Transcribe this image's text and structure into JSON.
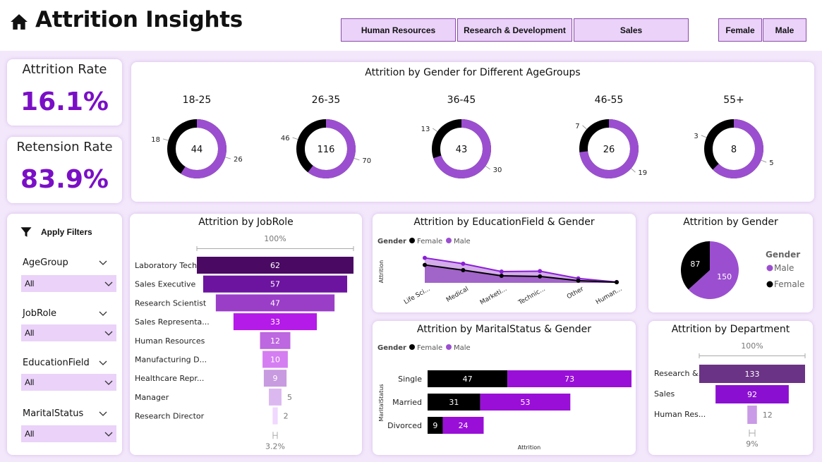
{
  "header": {
    "title": "Attrition Insights",
    "departments": [
      "Human Resources",
      "Research & Development",
      "Sales"
    ],
    "genders": [
      "Female",
      "Male"
    ]
  },
  "kpis": {
    "attrition_label": "Attrition Rate",
    "attrition_value": "16.1%",
    "retention_label": "Retension Rate",
    "retention_value": "83.9%"
  },
  "filters": {
    "title": "Apply Filters",
    "items": [
      {
        "label": "AgeGroup",
        "value": "All"
      },
      {
        "label": "JobRole",
        "value": "All"
      },
      {
        "label": "EducationField",
        "value": "All"
      },
      {
        "label": "MaritalStatus",
        "value": "All"
      }
    ]
  },
  "colors": {
    "female": "#000000",
    "male": "#9b4fd0",
    "accent": "#7a0fc6"
  },
  "chart_data": [
    {
      "type": "pie",
      "title": "Attrition by Gender for Different AgeGroups",
      "groups": [
        {
          "label": "18-25",
          "total": 44,
          "female": 18,
          "male": 26
        },
        {
          "label": "26-35",
          "total": 116,
          "female": 46,
          "male": 70
        },
        {
          "label": "36-45",
          "total": 43,
          "female": 13,
          "male": 30
        },
        {
          "label": "46-55",
          "total": 26,
          "female": 7,
          "male": 19
        },
        {
          "label": "55+",
          "total": 8,
          "female": 3,
          "male": 5
        }
      ]
    },
    {
      "type": "bar",
      "title": "Attrition by JobRole",
      "top_label": "100%",
      "bottom_label": "3.2%",
      "categories": [
        "Laboratory Tech...",
        "Sales Executive",
        "Research Scientist",
        "Sales Representa...",
        "Human Resources",
        "Manufacturing D...",
        "Healthcare Repr...",
        "Manager",
        "Research Director"
      ],
      "values": [
        62,
        57,
        47,
        33,
        12,
        10,
        9,
        5,
        2
      ],
      "colors": [
        "#4a0a63",
        "#6c14a0",
        "#9a3ec8",
        "#b41ae8",
        "#bd67e0",
        "#d47ef2",
        "#c89ae0",
        "#dcb8f0",
        "#f0d8ff"
      ]
    },
    {
      "type": "area",
      "title": "Attrition by EducationField & Gender",
      "legend_title": "Gender",
      "ylabel": "Attrition",
      "categories": [
        "Life Sci...",
        "Medical",
        "Marketi...",
        "Technic...",
        "Other",
        "Human..."
      ],
      "series": [
        {
          "name": "Female",
          "values": [
            89,
            63,
            35,
            32,
            11,
            3
          ]
        },
        {
          "name": "Male",
          "values": [
            124,
            95,
            56,
            58,
            22,
            4
          ]
        }
      ],
      "ylim": [
        0,
        140
      ]
    },
    {
      "type": "bar",
      "title": "Attrition by MaritalStatus & Gender",
      "legend_title": "Gender",
      "xlabel": "Attrition",
      "ylabel": "MaritalStatus",
      "categories": [
        "Single",
        "Married",
        "Divorced"
      ],
      "series": [
        {
          "name": "Female",
          "values": [
            47,
            31,
            9
          ]
        },
        {
          "name": "Male",
          "values": [
            73,
            53,
            24
          ]
        }
      ]
    },
    {
      "type": "pie",
      "title": "Attrition by Gender",
      "legend_title": "Gender",
      "legend": [
        "Male",
        "Female"
      ],
      "slices": [
        {
          "label": "Male",
          "value": 150
        },
        {
          "label": "Female",
          "value": 87
        }
      ]
    },
    {
      "type": "bar",
      "title": "Attrition by Department",
      "top_label": "100%",
      "bottom_label": "9%",
      "categories": [
        "Research &...",
        "Sales",
        "Human Res..."
      ],
      "values": [
        133,
        92,
        12
      ],
      "colors": [
        "#6a3385",
        "#8b0fd0",
        "#c99ae6"
      ]
    }
  ]
}
